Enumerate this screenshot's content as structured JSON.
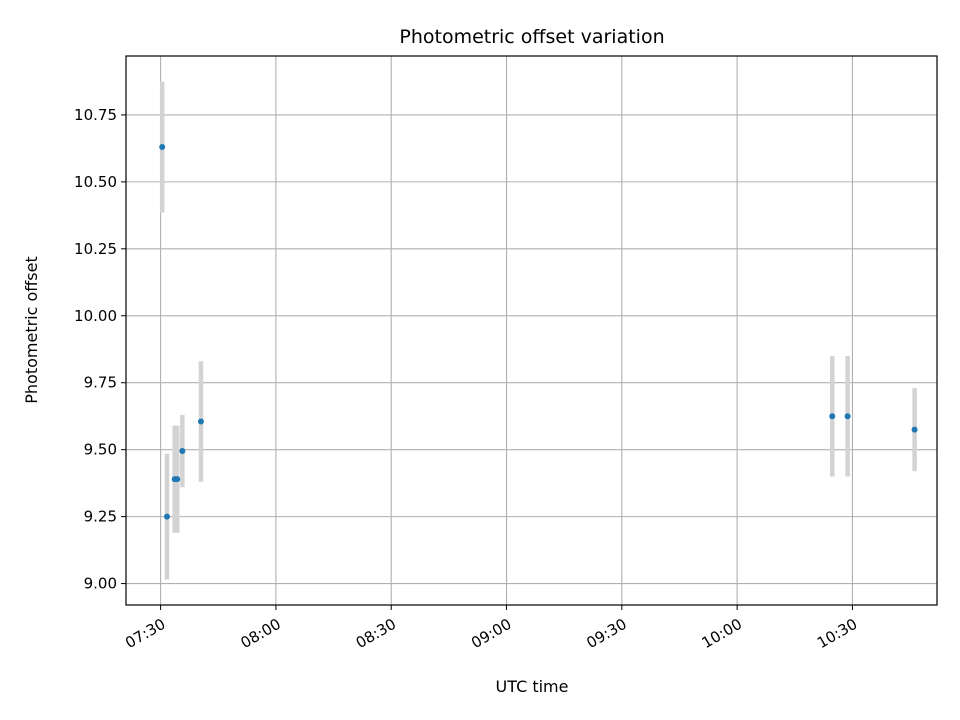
{
  "chart_data": {
    "type": "scatter",
    "title": "Photometric offset variation",
    "xlabel": "UTC time",
    "ylabel": "Photometric offset",
    "x_ticks": [
      "07:30",
      "08:00",
      "08:30",
      "09:00",
      "09:30",
      "10:00",
      "10:30"
    ],
    "y_ticks": [
      "9.00",
      "9.25",
      "9.50",
      "9.75",
      "10.00",
      "10.25",
      "10.50",
      "10.75"
    ],
    "xlim": [
      "07:21",
      "10:52"
    ],
    "ylim": [
      8.92,
      10.97
    ],
    "grid": true,
    "colors": {
      "marker": "#1f77b4",
      "errorbar": "#d3d3d3",
      "grid": "#b0b0b0"
    },
    "points": [
      {
        "time": "07:30:25",
        "y": 10.63,
        "yerr": 0.245
      },
      {
        "time": "07:31:40",
        "y": 9.25,
        "yerr": 0.235
      },
      {
        "time": "07:33:40",
        "y": 9.39,
        "yerr": 0.2
      },
      {
        "time": "07:34:20",
        "y": 9.39,
        "yerr": 0.2
      },
      {
        "time": "07:35:40",
        "y": 9.495,
        "yerr": 0.135
      },
      {
        "time": "07:40:30",
        "y": 9.605,
        "yerr": 0.225
      },
      {
        "time": "10:24:45",
        "y": 9.625,
        "yerr": 0.225
      },
      {
        "time": "10:28:45",
        "y": 9.625,
        "yerr": 0.225
      },
      {
        "time": "10:46:10",
        "y": 9.575,
        "yerr": 0.155
      }
    ]
  }
}
